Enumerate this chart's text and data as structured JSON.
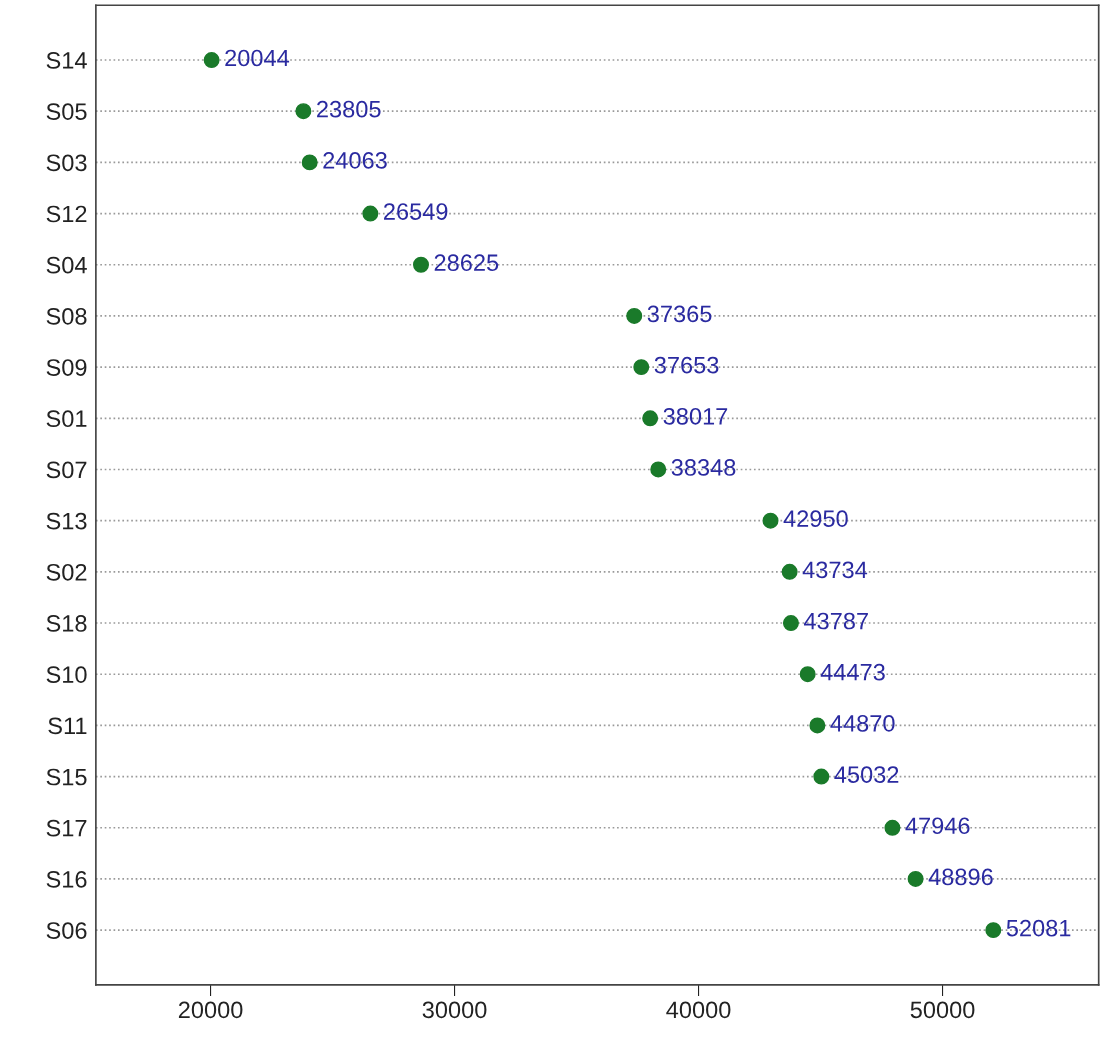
{
  "chart_data": {
    "type": "scatter",
    "orientation": "horizontal",
    "categories": [
      "S14",
      "S05",
      "S03",
      "S12",
      "S04",
      "S08",
      "S09",
      "S01",
      "S07",
      "S13",
      "S02",
      "S18",
      "S10",
      "S11",
      "S15",
      "S17",
      "S16",
      "S06"
    ],
    "values": [
      20044,
      23805,
      24063,
      26549,
      28625,
      37365,
      37653,
      38017,
      38348,
      42950,
      43734,
      43787,
      44473,
      44870,
      45032,
      47946,
      48896,
      52081
    ],
    "color": "#1a7a2a",
    "xlim": [
      15300,
      56400
    ],
    "xticks": [
      20000,
      30000,
      40000,
      50000
    ],
    "grid": "y",
    "line_style": "dotted",
    "marker": "circle",
    "data_labels": true
  }
}
